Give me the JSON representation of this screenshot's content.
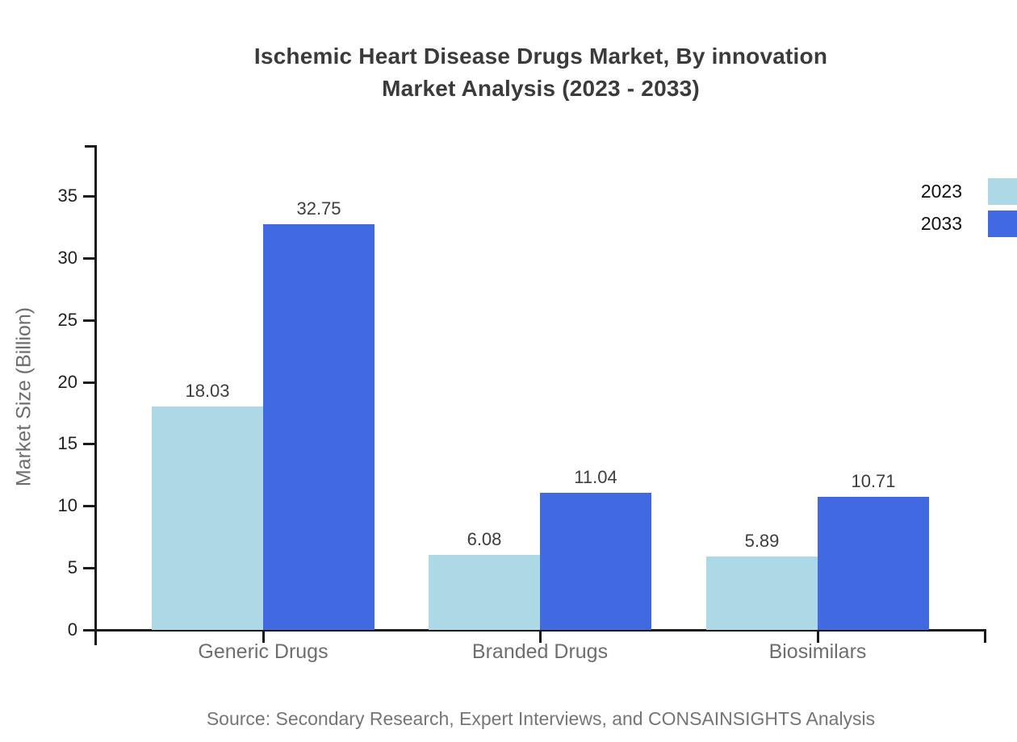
{
  "title": {
    "line1": "Ischemic Heart Disease Drugs Market, By innovation",
    "line2": "Market Analysis (2023 - 2033)"
  },
  "source": "Source: Secondary Research, Expert Interviews, and CONSAINSIGHTS Analysis",
  "chart_data": {
    "type": "bar",
    "title": "Ischemic Heart Disease Drugs Market, By innovation Market Analysis (2023 - 2033)",
    "categories": [
      "Generic Drugs",
      "Branded Drugs",
      "Biosimilars"
    ],
    "series": [
      {
        "name": "2023",
        "color": "#ADD8E6",
        "values": [
          18.03,
          6.08,
          5.89
        ]
      },
      {
        "name": "2033",
        "color": "#4169E1",
        "values": [
          32.75,
          11.04,
          10.71
        ]
      }
    ],
    "value_labels": [
      "18.03",
      "32.75",
      "6.08",
      "11.04",
      "5.89",
      "10.71"
    ],
    "xlabel": "",
    "ylabel": "Market Size (Billion)",
    "ylim": [
      0,
      39
    ],
    "yticks": [
      0,
      5,
      10,
      15,
      20,
      25,
      30,
      35
    ],
    "grid": false,
    "legend_position": "top-right"
  },
  "colors": {
    "background": "#ffffff",
    "axis": "#1a1a1a",
    "title_text": "#3b3b3b",
    "tick_label": "#1f1f1f",
    "category_label": "#6e6e6e",
    "value_label": "#3d3d3d",
    "ylabel_text": "#6e6e6e",
    "legend_label": "#101010",
    "source_text": "#757575",
    "series_2023": "#ADD8E6",
    "series_2033": "#4169E1"
  }
}
